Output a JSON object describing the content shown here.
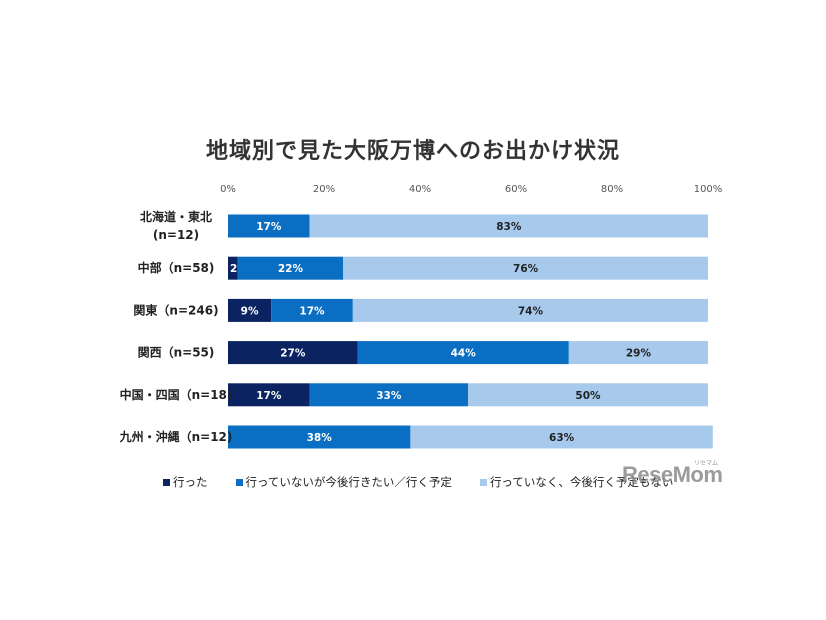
{
  "chart_data": {
    "type": "bar",
    "orientation": "horizontal",
    "stacked": true,
    "title": "地域別で見た大阪万博へのお出かけ状況",
    "categories": [
      [
        "北海道・東北",
        "(n=12)"
      ],
      [
        "中部（n=58)"
      ],
      [
        "関東（n=246)"
      ],
      [
        "関西（n=55)"
      ],
      [
        "中国・四国（n=18)"
      ],
      [
        "九州・沖縄（n=12)"
      ]
    ],
    "series": [
      {
        "name": "行った",
        "color": "#0b2461",
        "values": [
          0,
          2,
          9,
          27,
          17,
          0
        ],
        "labels": [
          "",
          "2%",
          "9%",
          "27%",
          "17%",
          ""
        ]
      },
      {
        "name": "行っていないが今後行きたい／行く予定",
        "color": "#0a6ec2",
        "values": [
          17,
          22,
          17,
          44,
          33,
          38
        ],
        "labels": [
          "17%",
          "22%",
          "17%",
          "44%",
          "33%",
          "38%"
        ]
      },
      {
        "name": "行っていなく、今後行く予定もない",
        "color": "#a7c9ec",
        "values": [
          83,
          76,
          74,
          29,
          50,
          63
        ],
        "labels": [
          "83%",
          "76%",
          "74%",
          "29%",
          "50%",
          "63%"
        ]
      }
    ],
    "xlim": [
      0,
      100
    ],
    "xticks": [
      "0%",
      "20%",
      "40%",
      "60%",
      "80%",
      "100%"
    ],
    "grid": false,
    "legend_position": "bottom"
  },
  "watermark": {
    "text": "ReseMom",
    "kana": "リセマム"
  }
}
